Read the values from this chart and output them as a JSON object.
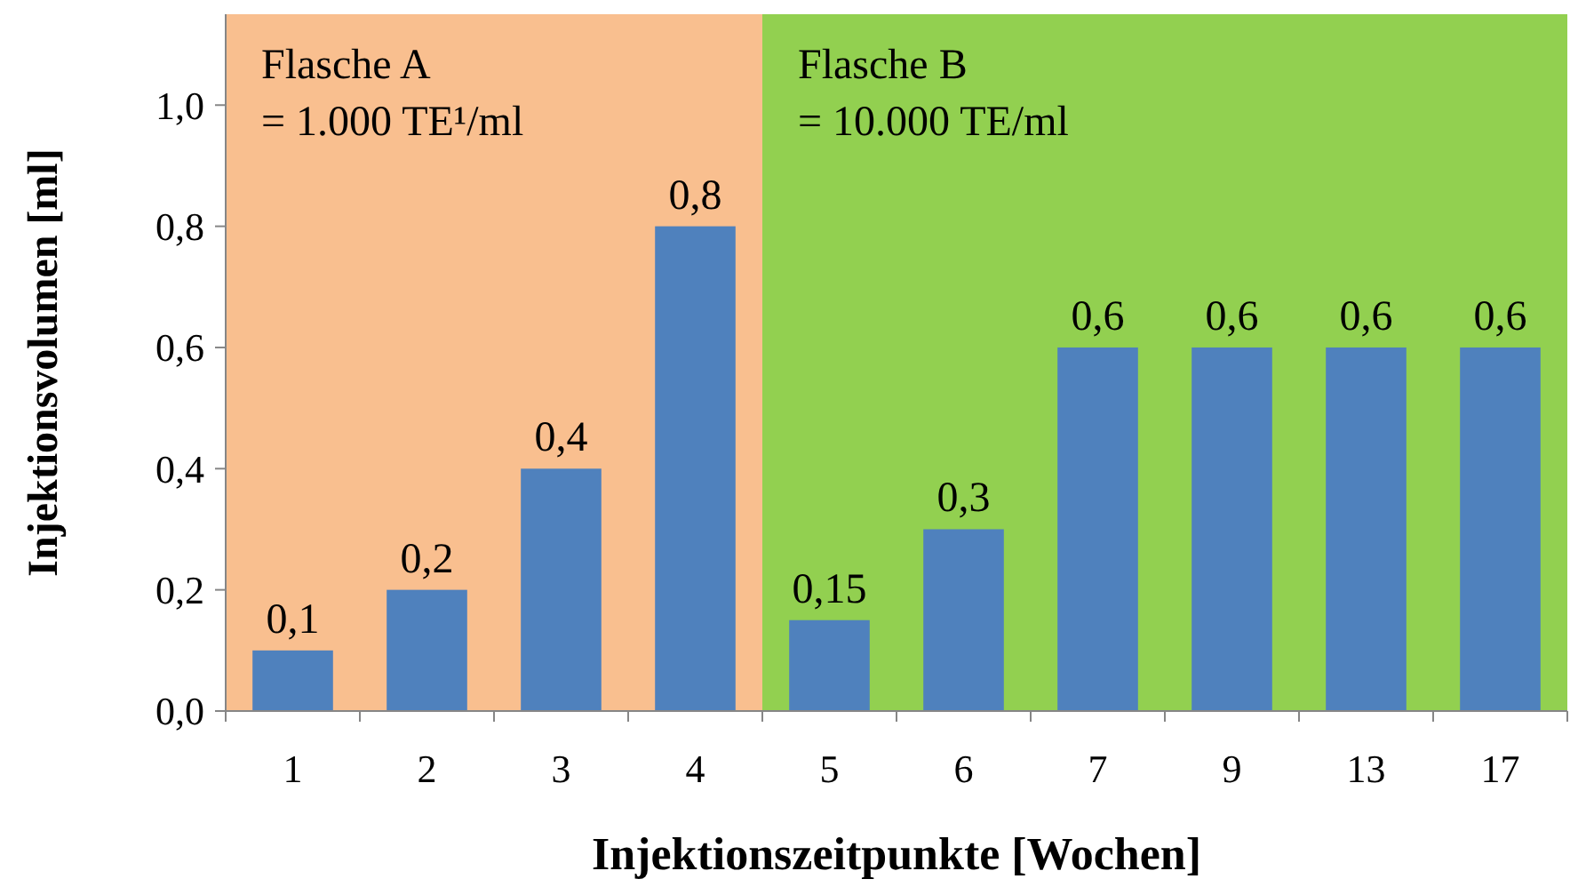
{
  "chart_data": {
    "type": "bar",
    "xlabel": "Injektionszeitpunkte [Wochen]",
    "ylabel": "Injektionsvolumen [ml]",
    "categories": [
      "1",
      "2",
      "3",
      "4",
      "5",
      "6",
      "7",
      "9",
      "13",
      "17"
    ],
    "values": [
      0.1,
      0.2,
      0.4,
      0.8,
      0.15,
      0.3,
      0.6,
      0.6,
      0.6,
      0.6
    ],
    "value_labels": [
      "0,1",
      "0,2",
      "0,4",
      "0,8",
      "0,15",
      "0,3",
      "0,6",
      "0,6",
      "0,6",
      "0,6"
    ],
    "color": "#4f81bd",
    "ylim": [
      0,
      1.15
    ],
    "yticks": [
      {
        "value": 0,
        "label": "0,0"
      },
      {
        "value": 0.2,
        "label": "0,2"
      },
      {
        "value": 0.4,
        "label": "0,4"
      },
      {
        "value": 0.6,
        "label": "0,6"
      },
      {
        "value": 0.8,
        "label": "0,8"
      },
      {
        "value": 1,
        "label": "1,0"
      }
    ],
    "bands": [
      {
        "axis": "x",
        "from": "1",
        "to": "4",
        "label": "Flasche A\n= 1.000 TE¹/ml",
        "color": "#f9bf8f"
      },
      {
        "axis": "x",
        "from": "5",
        "to": "17",
        "label": "Flasche B\n= 10.000 TE/ml",
        "color": "#92d050"
      }
    ]
  }
}
